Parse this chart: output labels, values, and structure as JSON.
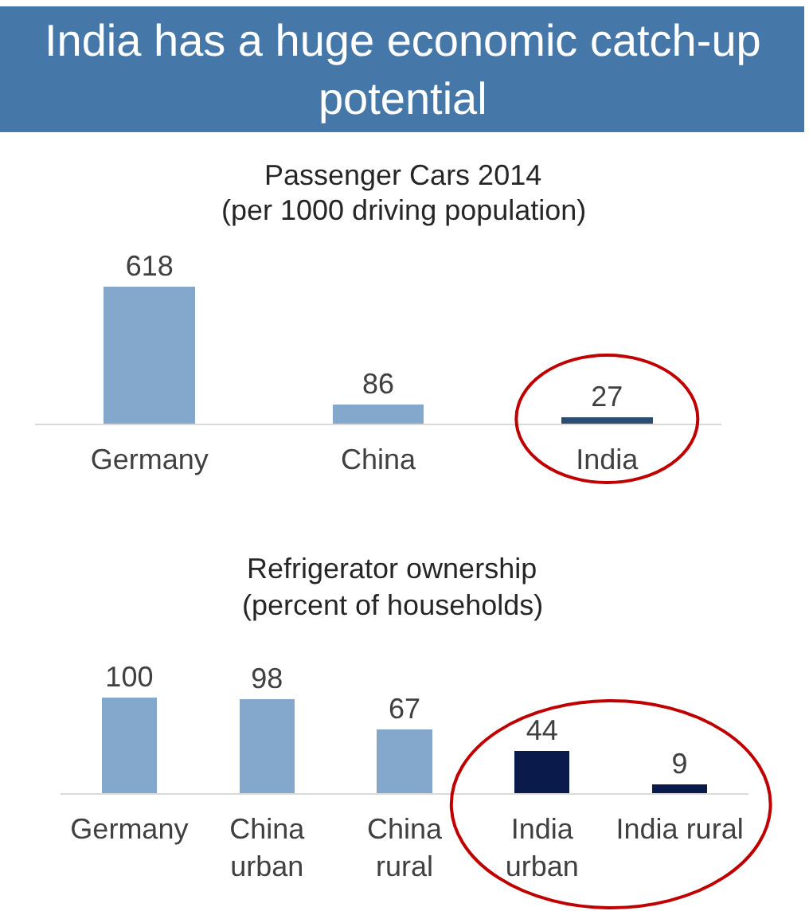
{
  "chart_data": [
    {
      "type": "other",
      "title": "India has a huge economic catch-up potential",
      "color": "#4677a9"
    },
    {
      "type": "bar",
      "title": "Passenger Cars 2014",
      "subtitle": "(per 1000 driving population)",
      "categories": [
        "Germany",
        "China",
        "India"
      ],
      "values": [
        618,
        86,
        27
      ],
      "colors": [
        "#84a8cc",
        "#84a8cc",
        "#2b4d72"
      ],
      "data_labels": true
    },
    {
      "type": "bar",
      "title": "Refrigerator ownership",
      "subtitle": "(percent of households)",
      "categories": [
        "Germany",
        "China urban",
        "China rural",
        "India urban",
        "India rural"
      ],
      "values": [
        100,
        98,
        67,
        44,
        9
      ],
      "colors": [
        "#84a8cc",
        "#84a8cc",
        "#84a8cc",
        "#0a1a4b",
        "#0a1a4b"
      ],
      "data_labels": true
    }
  ]
}
